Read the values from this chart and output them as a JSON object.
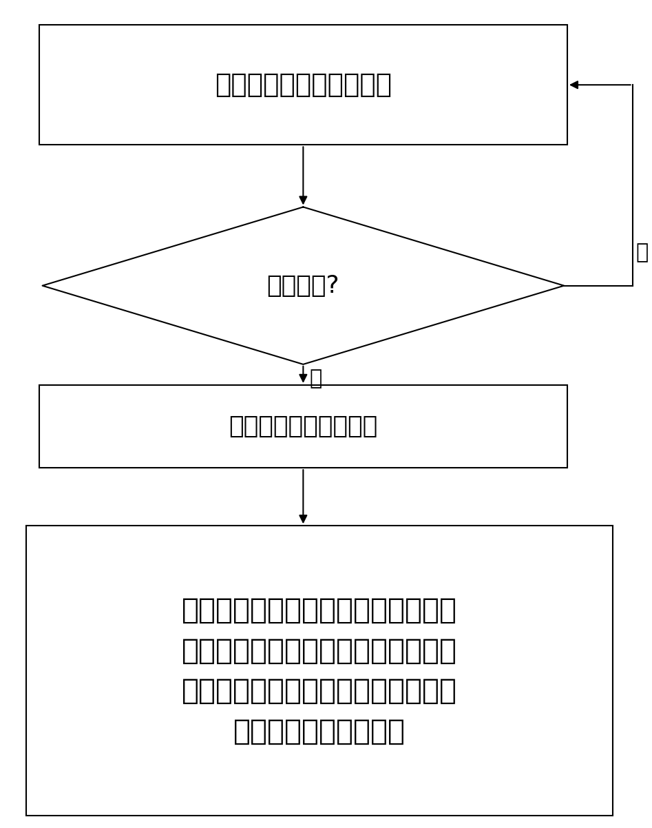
{
  "bg_color": "#ffffff",
  "line_color": "#000000",
  "text_color": "#000000",
  "box1_text": "实时检测列车的运行工况",
  "box2_text": "惰行工况?",
  "box3_text": "启动执行轮对轮径校验",
  "box4_line1": "分别获取当前列车中各动力轴相邻拖",
  "box4_line2": "车的速度以及轮径，根据获取到的相",
  "box4_line3": "邻拖车的速度以及轮径分别对各动力",
  "box4_line4": "轴的轮对轮径进行校验",
  "yes_label": "是",
  "no_label": "否",
  "font_size_box1": 28,
  "font_size_box2": 26,
  "font_size_box3": 26,
  "font_size_box4": 30,
  "font_size_label": 22
}
